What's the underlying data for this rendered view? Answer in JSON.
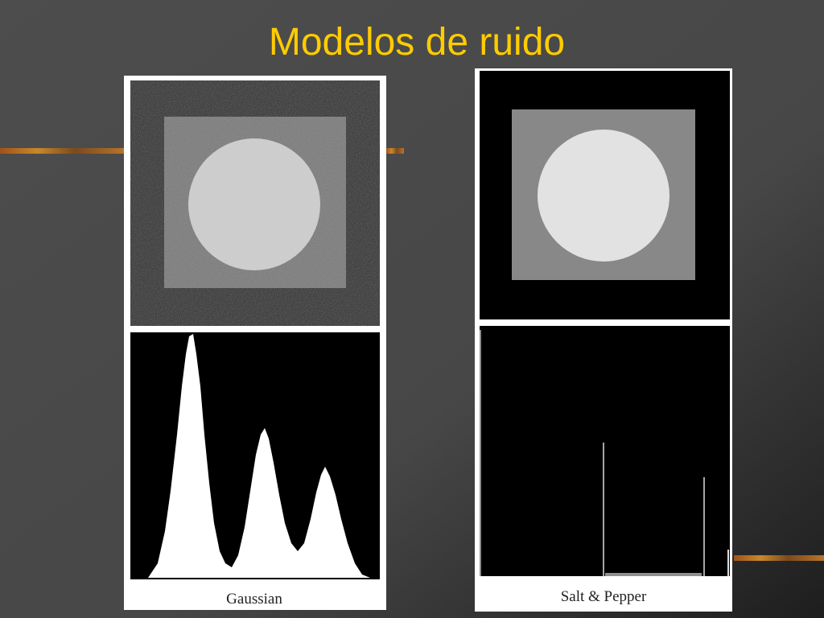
{
  "slide": {
    "title": "Modelos de ruido"
  },
  "panels": [
    {
      "caption": "Gaussian"
    },
    {
      "caption": "Salt & Pepper"
    }
  ]
}
